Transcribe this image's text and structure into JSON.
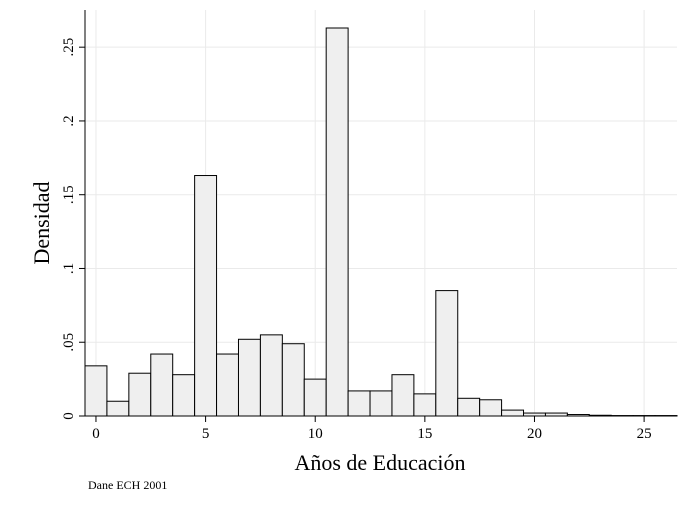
{
  "chart_data": {
    "type": "bar",
    "xlabel": "Años de Educación",
    "ylabel": "Densidad",
    "note": "Dane ECH 2001",
    "xlim": [
      -0.5,
      26.5
    ],
    "ylim": [
      0,
      0.263
    ],
    "grid": true,
    "x_ticks": [
      0,
      5,
      10,
      15,
      20,
      25
    ],
    "x_tick_labels": [
      "0",
      "5",
      "10",
      "15",
      "20",
      "25"
    ],
    "y_ticks": [
      0,
      0.05,
      0.1,
      0.15,
      0.2,
      0.25
    ],
    "y_tick_labels": [
      "0",
      ".05",
      ".1",
      ".15",
      ".2",
      ".25"
    ],
    "bin_width": 1,
    "bins": [
      {
        "x": 0,
        "density": 0.034
      },
      {
        "x": 1,
        "density": 0.01
      },
      {
        "x": 2,
        "density": 0.029
      },
      {
        "x": 3,
        "density": 0.042
      },
      {
        "x": 4,
        "density": 0.028
      },
      {
        "x": 5,
        "density": 0.163
      },
      {
        "x": 6,
        "density": 0.042
      },
      {
        "x": 7,
        "density": 0.052
      },
      {
        "x": 8,
        "density": 0.055
      },
      {
        "x": 9,
        "density": 0.049
      },
      {
        "x": 10,
        "density": 0.025
      },
      {
        "x": 11,
        "density": 0.263
      },
      {
        "x": 12,
        "density": 0.017
      },
      {
        "x": 13,
        "density": 0.017
      },
      {
        "x": 14,
        "density": 0.028
      },
      {
        "x": 15,
        "density": 0.015
      },
      {
        "x": 16,
        "density": 0.085
      },
      {
        "x": 17,
        "density": 0.012
      },
      {
        "x": 18,
        "density": 0.011
      },
      {
        "x": 19,
        "density": 0.004
      },
      {
        "x": 20,
        "density": 0.002
      },
      {
        "x": 21,
        "density": 0.002
      },
      {
        "x": 22,
        "density": 0.001
      },
      {
        "x": 23,
        "density": 0.0005
      },
      {
        "x": 24,
        "density": 0.0003
      },
      {
        "x": 25,
        "density": 0.0003
      },
      {
        "x": 26,
        "density": 0.0003
      }
    ],
    "colors": {
      "bar_fill": "#efefef",
      "bar_stroke": "#000000",
      "grid": "#eaeaea",
      "axis": "#000000"
    }
  }
}
